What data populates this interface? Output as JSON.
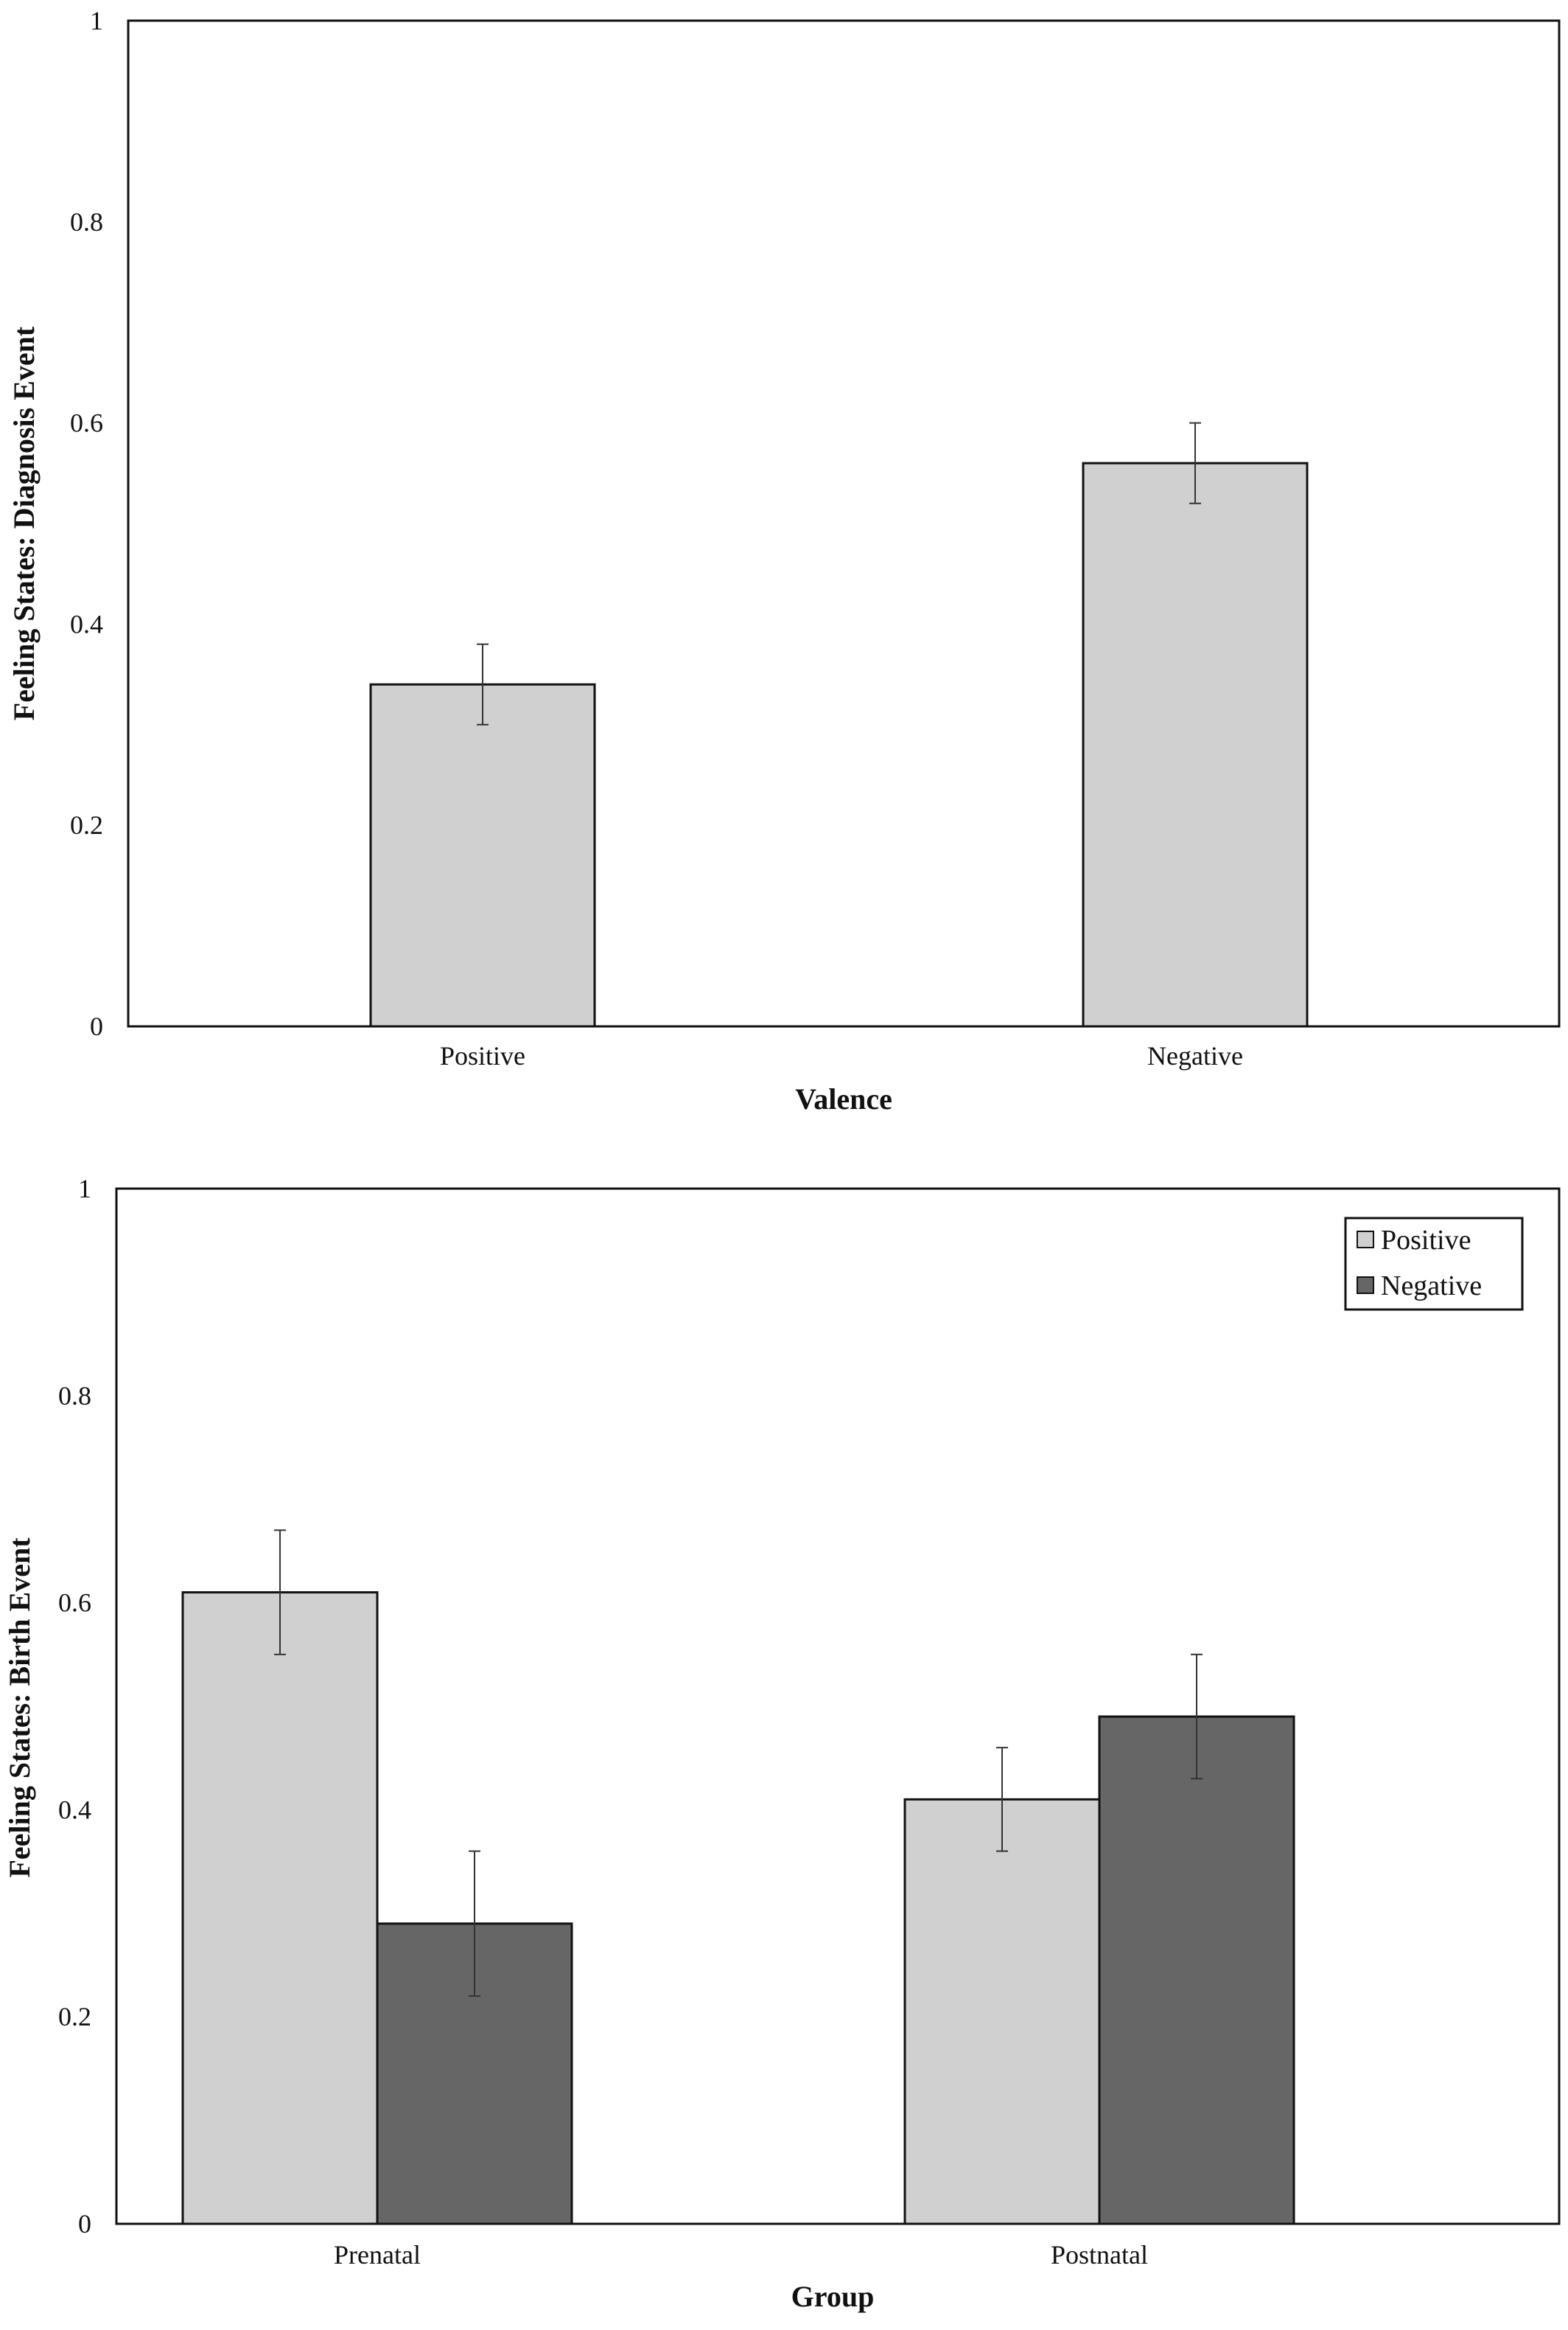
{
  "chart_data": [
    {
      "type": "bar",
      "categories": [
        "Positive",
        "Negative"
      ],
      "series": [
        {
          "values": [
            0.34,
            0.56
          ],
          "errors": [
            0.04,
            0.04
          ],
          "color": "#d0d0d0"
        }
      ],
      "xlabel": "Valence",
      "ylabel": "Feeling States: Diagnosis Event",
      "ylim": [
        0,
        1
      ],
      "yticks": [
        "0",
        "0.2",
        "0.4",
        "0.6",
        "0.8",
        "1"
      ],
      "grid": false,
      "legend": null
    },
    {
      "type": "bar",
      "categories": [
        "Prenatal",
        "Postnatal"
      ],
      "series": [
        {
          "name": "Positive",
          "values": [
            0.61,
            0.41
          ],
          "errors": [
            0.06,
            0.05
          ],
          "color": "#d0d0d0"
        },
        {
          "name": "Negative",
          "values": [
            0.29,
            0.49
          ],
          "errors": [
            0.07,
            0.06
          ],
          "color": "#666666"
        }
      ],
      "xlabel": "Group",
      "ylabel": "Feeling States: Birth Event",
      "ylim": [
        0,
        1
      ],
      "yticks": [
        "0",
        "0.2",
        "0.4",
        "0.6",
        "0.8",
        "1"
      ],
      "grid": false,
      "legend": "top-right"
    }
  ]
}
